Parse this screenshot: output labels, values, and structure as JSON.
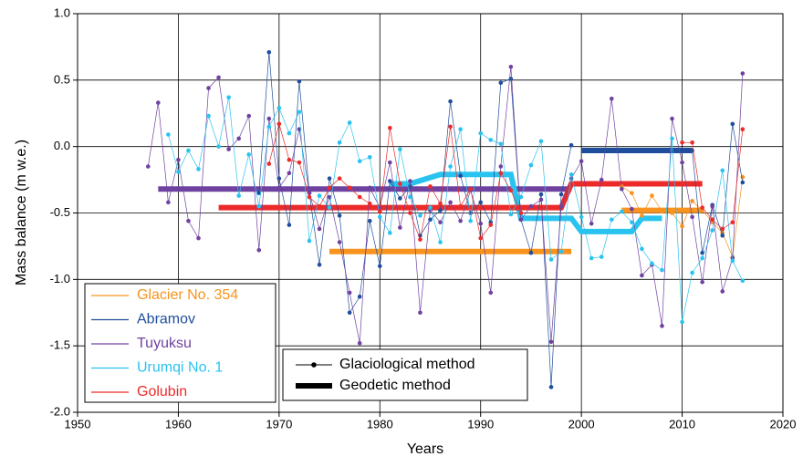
{
  "chart_data": {
    "type": "line",
    "x_label": "Years",
    "y_label": "Mass balance (m w.e.)",
    "xlim": [
      1950,
      2020
    ],
    "xticks": [
      1950,
      1960,
      1970,
      1980,
      1990,
      2000,
      2010,
      2020
    ],
    "ylim": [
      -2,
      1
    ],
    "yticks": [
      {
        "value": -2,
        "label": "-2.0"
      },
      -1.5,
      {
        "value": -1,
        "label": "-1.0"
      },
      -0.5,
      {
        "value": 0,
        "label": "0.0"
      },
      0.5,
      {
        "value": 1,
        "label": "1.0"
      }
    ],
    "grid": true,
    "method_legend": [
      "Glaciological method",
      "Geodetic method"
    ],
    "series": [
      {
        "name": "Glacier No. 354",
        "color": "#f7931e",
        "x": [
          2004,
          2005,
          2006,
          2007,
          2008,
          2009,
          2010,
          2011,
          2012,
          2013,
          2014,
          2015,
          2016
        ],
        "values": [
          -0.3,
          -0.35,
          -0.52,
          -0.37,
          -0.49,
          -0.5,
          -0.6,
          -0.41,
          -0.48,
          -0.57,
          -0.65,
          -0.83,
          -0.23
        ],
        "geodetic_x": [
          1975,
          1999,
          2001,
          2004,
          2012
        ],
        "geodetic_values": [
          -0.79,
          -0.79,
          null,
          -0.48,
          -0.48
        ]
      },
      {
        "name": "Abramov",
        "color": "#1f4e9c",
        "x": [
          1968,
          1969,
          1970,
          1971,
          1972,
          1973,
          1974,
          1975,
          1976,
          1977,
          1978,
          1979,
          1980,
          1981,
          1982,
          1983,
          1984,
          1985,
          1986,
          1987,
          1988,
          1989,
          1990,
          1991,
          1992,
          1993,
          1994,
          1995,
          1996,
          1997,
          1998,
          1999,
          2005,
          2011,
          2012,
          2013,
          2014,
          2015,
          2016
        ],
        "values": [
          -0.35,
          0.71,
          -0.24,
          -0.59,
          0.49,
          -0.35,
          -0.89,
          -0.24,
          -0.52,
          -1.25,
          -1.13,
          -0.56,
          -0.9,
          -0.26,
          -0.39,
          -0.3,
          -0.67,
          -0.55,
          -0.48,
          0.34,
          -0.22,
          -0.5,
          -0.42,
          -0.57,
          0.48,
          0.51,
          -0.55,
          -0.8,
          -0.36,
          -1.81,
          -0.36,
          0.01,
          null,
          -0.03,
          -0.8,
          -0.44,
          -0.67,
          0.17,
          -0.27
        ],
        "geodetic_x": [
          2000,
          2011
        ],
        "geodetic_values": [
          -0.03,
          -0.03
        ]
      },
      {
        "name": "Tuyuksu",
        "color": "#7042a0",
        "x": [
          1957,
          1958,
          1959,
          1960,
          1961,
          1962,
          1963,
          1964,
          1965,
          1966,
          1967,
          1968,
          1969,
          1970,
          1971,
          1972,
          1973,
          1974,
          1975,
          1976,
          1977,
          1978,
          1979,
          1980,
          1981,
          1982,
          1983,
          1984,
          1985,
          1986,
          1987,
          1988,
          1989,
          1990,
          1991,
          1992,
          1993,
          1994,
          1995,
          1996,
          1997,
          1998,
          1999,
          2000,
          2001,
          2002,
          2003,
          2004,
          2005,
          2006,
          2007,
          2008,
          2009,
          2010,
          2011,
          2012,
          2013,
          2014,
          2015,
          2016
        ],
        "values": [
          -0.15,
          0.33,
          -0.42,
          -0.1,
          -0.56,
          -0.69,
          0.44,
          0.52,
          -0.02,
          0.06,
          0.23,
          -0.78,
          0.21,
          -0.31,
          -0.2,
          0.13,
          -0.35,
          -0.62,
          -0.38,
          -0.72,
          -1.1,
          -1.48,
          -0.31,
          -0.46,
          -0.12,
          -0.61,
          -0.26,
          -1.25,
          -0.48,
          -0.57,
          -0.42,
          -0.56,
          -0.33,
          -0.58,
          -1.1,
          -0.15,
          0.6,
          -0.55,
          -0.45,
          -0.4,
          -1.47,
          -0.45,
          -0.24,
          -0.11,
          -0.58,
          -0.25,
          0.36,
          -0.32,
          -0.47,
          -0.97,
          -0.89,
          -1.35,
          0.21,
          -0.12,
          -0.53,
          -1.02,
          -0.45,
          -1.09,
          -0.84,
          0.55
        ],
        "geodetic_x": [
          1958,
          1999
        ],
        "geodetic_values": [
          -0.32,
          -0.32
        ]
      },
      {
        "name": "Urumqi No. 1",
        "color": "#29c3ef",
        "x": [
          1959,
          1960,
          1961,
          1962,
          1963,
          1964,
          1965,
          1966,
          1967,
          1968,
          1969,
          1970,
          1971,
          1972,
          1973,
          1974,
          1975,
          1976,
          1977,
          1978,
          1979,
          1980,
          1981,
          1982,
          1983,
          1984,
          1985,
          1986,
          1987,
          1988,
          1989,
          1990,
          1991,
          1992,
          1993,
          1994,
          1995,
          1996,
          1997,
          1998,
          1999,
          2000,
          2001,
          2002,
          2003,
          2004,
          2005,
          2006,
          2007,
          2008,
          2009,
          2010,
          2011,
          2012,
          2013,
          2014,
          2015,
          2016
        ],
        "values": [
          0.09,
          -0.19,
          -0.03,
          -0.17,
          0.23,
          0.0,
          0.37,
          -0.37,
          -0.06,
          -0.45,
          0.15,
          0.29,
          0.1,
          0.26,
          -0.71,
          -0.37,
          -0.46,
          0.03,
          0.18,
          -0.11,
          -0.08,
          -0.53,
          -0.65,
          -0.02,
          -0.38,
          -0.52,
          -0.46,
          -0.72,
          -0.15,
          0.13,
          -0.56,
          0.1,
          0.05,
          0.02,
          -0.51,
          -0.38,
          -0.14,
          0.04,
          -0.85,
          -0.79,
          -0.21,
          -0.53,
          -0.84,
          -0.83,
          -0.55,
          -0.49,
          -0.57,
          -0.77,
          -0.88,
          -0.93,
          0.06,
          -1.32,
          -0.95,
          -0.84,
          -0.63,
          -0.18,
          -0.86,
          -1.01
        ],
        "geodetic_x": [
          1981,
          1983,
          1986,
          1993,
          1994,
          1999,
          2000,
          2005,
          2006,
          2008
        ],
        "geodetic_values": [
          -0.28,
          -0.28,
          -0.21,
          -0.21,
          -0.54,
          -0.54,
          -0.64,
          -0.64,
          -0.54,
          -0.54
        ]
      },
      {
        "name": "Golubin",
        "color": "#ed2a2a",
        "x": [
          1969,
          1970,
          1971,
          1972,
          1973,
          1974,
          1975,
          1976,
          1977,
          1978,
          1979,
          1980,
          1981,
          1982,
          1983,
          1984,
          1985,
          1986,
          1987,
          1988,
          1989,
          1990,
          1991,
          1992,
          1993,
          1994,
          2002,
          2010,
          2011,
          2012,
          2013,
          2014,
          2015,
          2016
        ],
        "values": [
          -0.13,
          0.17,
          -0.1,
          -0.12,
          -0.38,
          -0.45,
          -0.31,
          -0.24,
          -0.31,
          -0.38,
          -0.43,
          -0.49,
          0.14,
          -0.28,
          -0.5,
          -0.7,
          -0.3,
          -0.43,
          0.15,
          -0.45,
          -0.32,
          -0.69,
          -0.59,
          -0.2,
          -0.33,
          -0.5,
          null,
          0.03,
          0.03,
          -0.46,
          -0.55,
          -0.62,
          -0.57,
          0.13
        ],
        "geodetic_x": [
          1964,
          1998,
          1999,
          2012
        ],
        "geodetic_values": [
          -0.46,
          -0.46,
          -0.28,
          -0.28
        ]
      }
    ]
  }
}
